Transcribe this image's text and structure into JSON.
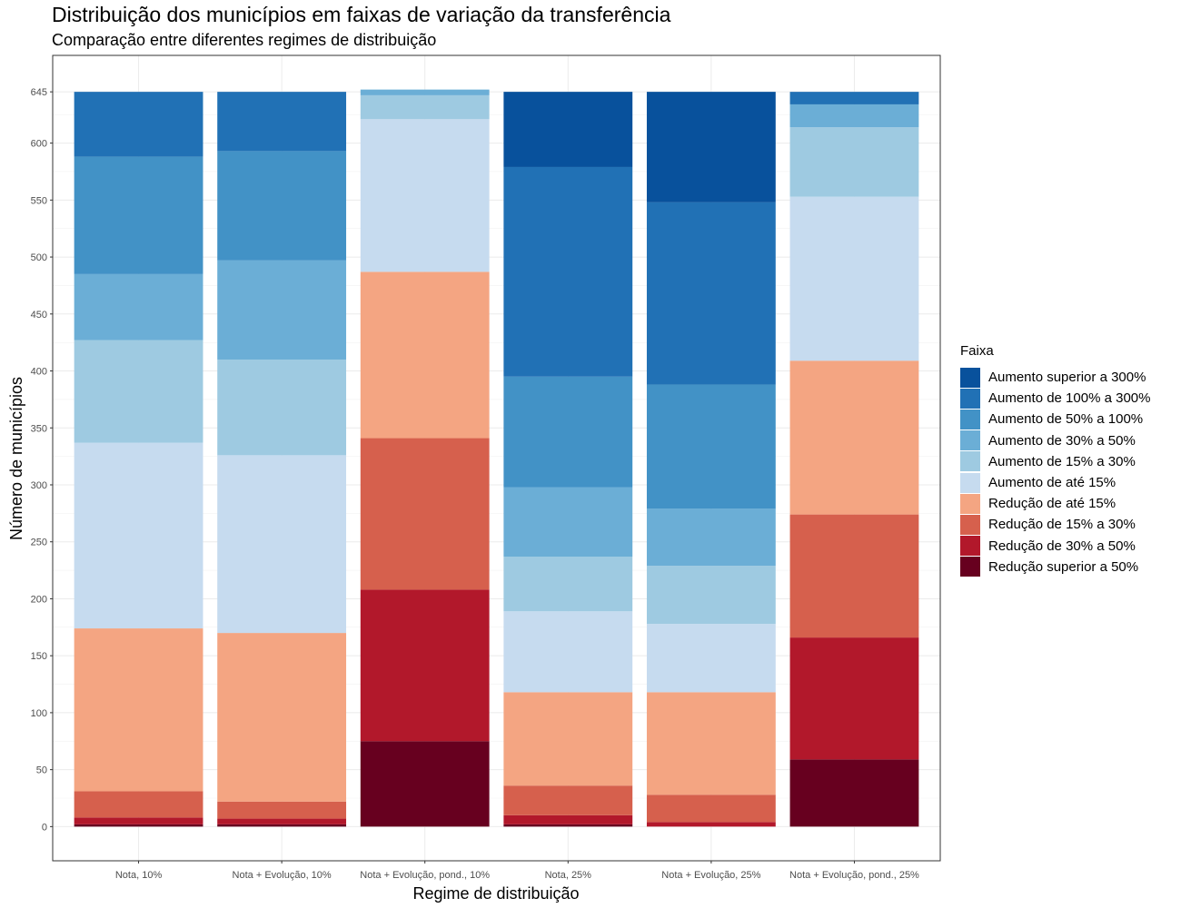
{
  "chart_data": {
    "type": "bar",
    "stacked": true,
    "title": "Distribuição dos municípios em faixas de variação da transferência",
    "subtitle": "Comparação entre diferentes regimes de distribuição",
    "xlabel": "Regime de distribuição",
    "ylabel": "Número de municípios",
    "ylim": [
      -30,
      677
    ],
    "yticks": [
      0,
      50,
      100,
      150,
      200,
      250,
      300,
      350,
      400,
      450,
      500,
      550,
      600,
      645
    ],
    "grid": true,
    "legend_title": "Faixa",
    "legend_position": "right",
    "categories": [
      "Nota, 10%",
      "Nota + Evolução, 10%",
      "Nota + Evolução, pond., 10%",
      "Nota, 25%",
      "Nota + Evolução, 25%",
      "Nota + Evolução, pond., 25%"
    ],
    "series": [
      {
        "name": "Redução superior a 50%",
        "color": "#67001F",
        "values": [
          2,
          2,
          75,
          2,
          0,
          59
        ]
      },
      {
        "name": "Redução de 30% a 50%",
        "color": "#B2182B",
        "values": [
          6,
          5,
          133,
          8,
          4,
          107
        ]
      },
      {
        "name": "Redução de 15% a 30%",
        "color": "#D6604D",
        "values": [
          23,
          15,
          133,
          26,
          24,
          108
        ]
      },
      {
        "name": "Redução de até 15%",
        "color": "#F4A582",
        "values": [
          143,
          148,
          146,
          82,
          90,
          135
        ]
      },
      {
        "name": "Aumento de até 15%",
        "color": "#C6DBEF",
        "values": [
          163,
          156,
          134,
          71,
          60,
          144
        ]
      },
      {
        "name": "Aumento de 15% a 30%",
        "color": "#9ECAE1",
        "values": [
          90,
          84,
          21,
          48,
          51,
          61
        ]
      },
      {
        "name": "Aumento de 30% a 50%",
        "color": "#6BAED6",
        "values": [
          58,
          87,
          5,
          61,
          50,
          20
        ]
      },
      {
        "name": "Aumento de 50% a 100%",
        "color": "#4292C6",
        "values": [
          103,
          96,
          0,
          97,
          109,
          0
        ]
      },
      {
        "name": "Aumento de 100% a 300%",
        "color": "#2171B5",
        "values": [
          57,
          52,
          0,
          184,
          160,
          11
        ]
      },
      {
        "name": "Aumento superior a 300%",
        "color": "#08519C",
        "values": [
          0,
          0,
          0,
          66,
          97,
          0
        ]
      }
    ]
  }
}
